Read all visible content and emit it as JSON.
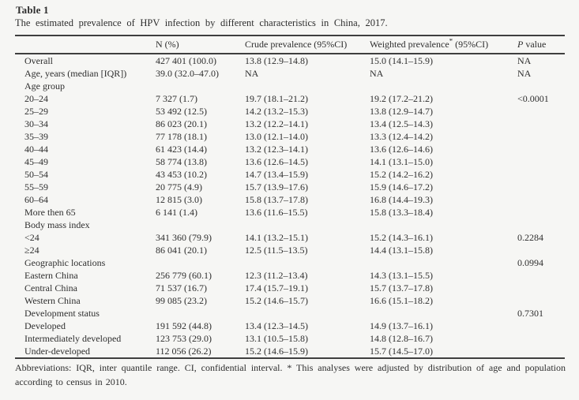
{
  "page": {
    "background_color": "#f6f6f4",
    "text_color": "#2e2e2e",
    "rule_color": "#3f3f3f"
  },
  "table": {
    "label": "Table 1",
    "caption": "The estimated prevalence of HPV infection by different characteristics in China, 2017.",
    "header": {
      "characteristic": "",
      "n": "N (%)",
      "crude": "Crude prevalence (95%CI)",
      "weighted_pre": "Weighted prevalence",
      "weighted_sup": "*",
      "weighted_post": " (95%CI)",
      "p_italic": "P",
      "p_rest": " value"
    },
    "rows": [
      {
        "label": "Overall",
        "n": "427 401 (100.0)",
        "crude": "13.8 (12.9–14.8)",
        "weighted": "15.0 (14.1–15.9)",
        "p": "NA"
      },
      {
        "label": "Age, years (median [IQR])",
        "n": "39.0 (32.0–47.0)",
        "crude": "NA",
        "weighted": "NA",
        "p": "NA"
      },
      {
        "label": "Age group",
        "n": "",
        "crude": "",
        "weighted": "",
        "p": ""
      },
      {
        "label": "20–24",
        "n": "7 327 (1.7)",
        "crude": "19.7 (18.1–21.2)",
        "weighted": "19.2 (17.2–21.2)",
        "p": "<0.0001"
      },
      {
        "label": "25–29",
        "n": "53 492 (12.5)",
        "crude": "14.2 (13.2–15.3)",
        "weighted": "13.8 (12.9–14.7)",
        "p": ""
      },
      {
        "label": "30–34",
        "n": "86 023 (20.1)",
        "crude": "13.2 (12.2–14.1)",
        "weighted": "13.4 (12.5–14.3)",
        "p": ""
      },
      {
        "label": "35–39",
        "n": "77 178 (18.1)",
        "crude": "13.0 (12.1–14.0)",
        "weighted": "13.3 (12.4–14.2)",
        "p": ""
      },
      {
        "label": "40–44",
        "n": "61 423 (14.4)",
        "crude": "13.2 (12.3–14.1)",
        "weighted": "13.6 (12.6–14.6)",
        "p": ""
      },
      {
        "label": "45–49",
        "n": "58 774 (13.8)",
        "crude": "13.6 (12.6–14.5)",
        "weighted": "14.1 (13.1–15.0)",
        "p": ""
      },
      {
        "label": "50–54",
        "n": "43 453 (10.2)",
        "crude": "14.7 (13.4–15.9)",
        "weighted": "15.2 (14.2–16.2)",
        "p": ""
      },
      {
        "label": "55–59",
        "n": "20 775 (4.9)",
        "crude": "15.7 (13.9–17.6)",
        "weighted": "15.9 (14.6–17.2)",
        "p": ""
      },
      {
        "label": "60–64",
        "n": "12 815 (3.0)",
        "crude": "15.8 (13.7–17.8)",
        "weighted": "16.8 (14.4–19.3)",
        "p": ""
      },
      {
        "label": "More then 65",
        "n": "6 141 (1.4)",
        "crude": "13.6 (11.6–15.5)",
        "weighted": "15.8 (13.3–18.4)",
        "p": ""
      },
      {
        "label": "Body mass index",
        "n": "",
        "crude": "",
        "weighted": "",
        "p": ""
      },
      {
        "label": "<24",
        "n": "341 360 (79.9)",
        "crude": "14.1 (13.2–15.1)",
        "weighted": "15.2 (14.3–16.1)",
        "p": "0.2284"
      },
      {
        "label": "≥24",
        "n": "86 041 (20.1)",
        "crude": "12.5 (11.5–13.5)",
        "weighted": "14.4 (13.1–15.8)",
        "p": ""
      },
      {
        "label": "Geographic locations",
        "n": "",
        "crude": "",
        "weighted": "",
        "p": "0.0994"
      },
      {
        "label": "Eastern China",
        "n": "256 779 (60.1)",
        "crude": "12.3 (11.2–13.4)",
        "weighted": "14.3 (13.1–15.5)",
        "p": ""
      },
      {
        "label": "Central China",
        "n": "71 537 (16.7)",
        "crude": "17.4 (15.7–19.1)",
        "weighted": "15.7 (13.7–17.8)",
        "p": ""
      },
      {
        "label": "Western China",
        "n": "99 085 (23.2)",
        "crude": "15.2 (14.6–15.7)",
        "weighted": "16.6 (15.1–18.2)",
        "p": ""
      },
      {
        "label": "Development status",
        "n": "",
        "crude": "",
        "weighted": "",
        "p": "0.7301"
      },
      {
        "label": "Developed",
        "n": "191 592 (44.8)",
        "crude": "13.4 (12.3–14.5)",
        "weighted": "14.9 (13.7–16.1)",
        "p": ""
      },
      {
        "label": "Intermediately developed",
        "n": "123 753 (29.0)",
        "crude": "13.1 (10.5–15.8)",
        "weighted": "14.8 (12.8–16.7)",
        "p": ""
      },
      {
        "label": "Under-developed",
        "n": "112 056 (26.2)",
        "crude": "15.2 (14.6–15.9)",
        "weighted": "15.7 (14.5–17.0)",
        "p": ""
      }
    ],
    "footnote": "Abbreviations: IQR, inter quantile range. CI, confidential interval. * This analyses were adjusted by distribution of age and population according to census in 2010."
  }
}
